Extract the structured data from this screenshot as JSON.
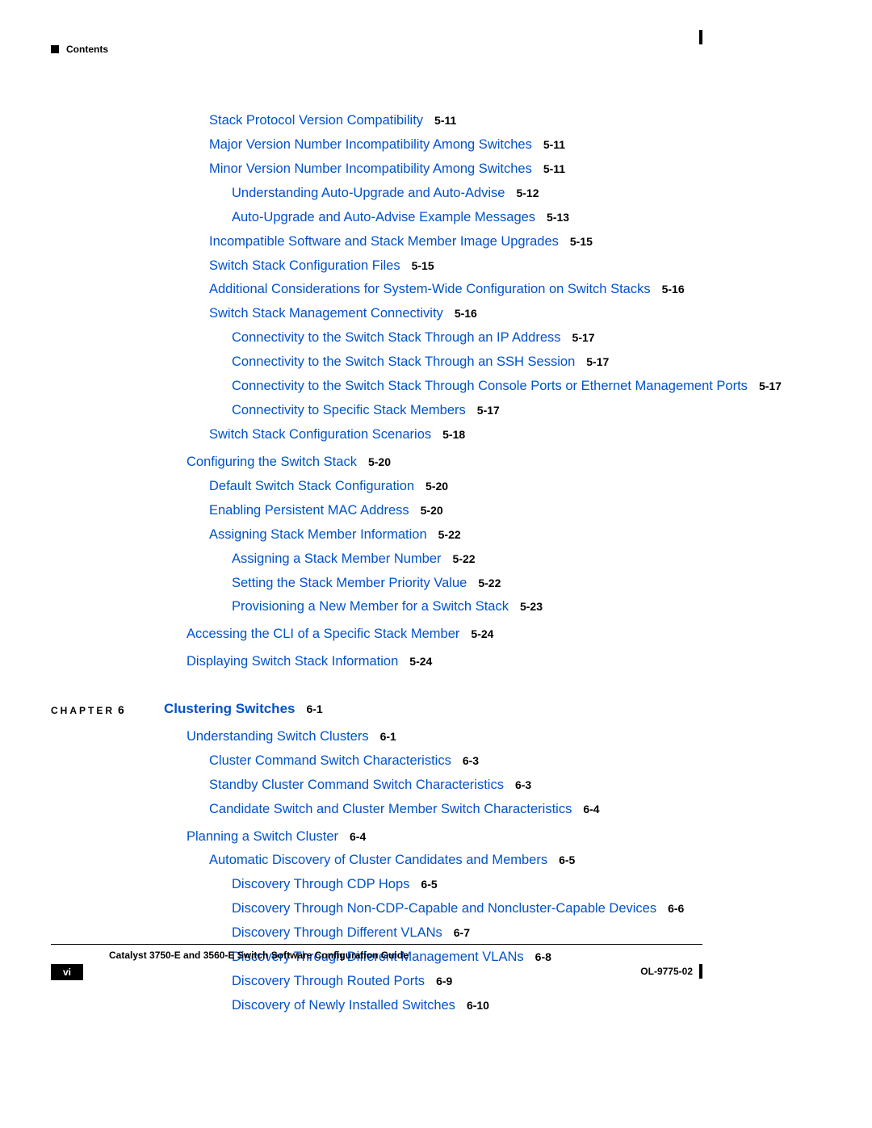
{
  "header": {
    "label": "Contents"
  },
  "chapter": {
    "label": "CHAPTER",
    "number": "6",
    "title": "Clustering Switches",
    "page": "6-1"
  },
  "toc": [
    {
      "indent": 2,
      "text": "Stack Protocol Version Compatibility",
      "page": "5-11"
    },
    {
      "indent": 2,
      "text": "Major Version Number Incompatibility Among Switches",
      "page": "5-11"
    },
    {
      "indent": 2,
      "text": "Minor Version Number Incompatibility Among Switches",
      "page": "5-11"
    },
    {
      "indent": 3,
      "text": "Understanding Auto-Upgrade and Auto-Advise",
      "page": "5-12"
    },
    {
      "indent": 3,
      "text": "Auto-Upgrade and Auto-Advise Example Messages",
      "page": "5-13"
    },
    {
      "indent": 2,
      "text": "Incompatible Software and Stack Member Image Upgrades",
      "page": "5-15"
    },
    {
      "indent": 2,
      "text": "Switch Stack Configuration Files",
      "page": "5-15"
    },
    {
      "indent": 2,
      "text": "Additional Considerations for System-Wide Configuration on Switch Stacks",
      "page": "5-16"
    },
    {
      "indent": 2,
      "text": "Switch Stack Management Connectivity",
      "page": "5-16"
    },
    {
      "indent": 3,
      "text": "Connectivity to the Switch Stack Through an IP Address",
      "page": "5-17"
    },
    {
      "indent": 3,
      "text": "Connectivity to the Switch Stack Through an SSH Session",
      "page": "5-17"
    },
    {
      "indent": 3,
      "text": "Connectivity to the Switch Stack Through Console Ports or Ethernet Management Ports",
      "page": "5-17"
    },
    {
      "indent": 3,
      "text": "Connectivity to Specific Stack Members",
      "page": "5-17"
    },
    {
      "indent": 2,
      "text": "Switch Stack Configuration Scenarios",
      "page": "5-18"
    },
    {
      "indent": 1,
      "text": "Configuring the Switch Stack",
      "page": "5-20",
      "gapBefore": true
    },
    {
      "indent": 2,
      "text": "Default Switch Stack Configuration",
      "page": "5-20"
    },
    {
      "indent": 2,
      "text": "Enabling Persistent MAC Address",
      "page": "5-20"
    },
    {
      "indent": 2,
      "text": "Assigning Stack Member Information",
      "page": "5-22"
    },
    {
      "indent": 3,
      "text": "Assigning a Stack Member Number",
      "page": "5-22"
    },
    {
      "indent": 3,
      "text": "Setting the Stack Member Priority Value",
      "page": "5-22"
    },
    {
      "indent": 3,
      "text": "Provisioning a New Member for a Switch Stack",
      "page": "5-23"
    },
    {
      "indent": 1,
      "text": "Accessing the CLI of a Specific Stack Member",
      "page": "5-24",
      "gapBefore": true
    },
    {
      "indent": 1,
      "text": "Displaying Switch Stack Information",
      "page": "5-24",
      "gapBefore": true
    }
  ],
  "toc2": [
    {
      "indent": 1,
      "text": "Understanding Switch Clusters",
      "page": "6-1",
      "gapBefore": true
    },
    {
      "indent": 2,
      "text": "Cluster Command Switch Characteristics",
      "page": "6-3"
    },
    {
      "indent": 2,
      "text": "Standby Cluster Command Switch Characteristics",
      "page": "6-3"
    },
    {
      "indent": 2,
      "text": "Candidate Switch and Cluster Member Switch Characteristics",
      "page": "6-4"
    },
    {
      "indent": 1,
      "text": "Planning a Switch Cluster",
      "page": "6-4",
      "gapBefore": true
    },
    {
      "indent": 2,
      "text": "Automatic Discovery of Cluster Candidates and Members",
      "page": "6-5"
    },
    {
      "indent": 3,
      "text": "Discovery Through CDP Hops",
      "page": "6-5"
    },
    {
      "indent": 3,
      "text": "Discovery Through Non-CDP-Capable and Noncluster-Capable Devices",
      "page": "6-6"
    },
    {
      "indent": 3,
      "text": "Discovery Through Different VLANs",
      "page": "6-7"
    },
    {
      "indent": 3,
      "text": "Discovery Through Different Management VLANs",
      "page": "6-8"
    },
    {
      "indent": 3,
      "text": "Discovery Through Routed Ports",
      "page": "6-9"
    },
    {
      "indent": 3,
      "text": "Discovery of Newly Installed Switches",
      "page": "6-10"
    }
  ],
  "footer": {
    "title": "Catalyst 3750-E and 3560-E Switch Software Configuration Guide",
    "page": "vi",
    "docId": "OL-9775-02"
  },
  "colors": {
    "link": "#0052cc",
    "text": "#000000",
    "background": "#ffffff"
  }
}
